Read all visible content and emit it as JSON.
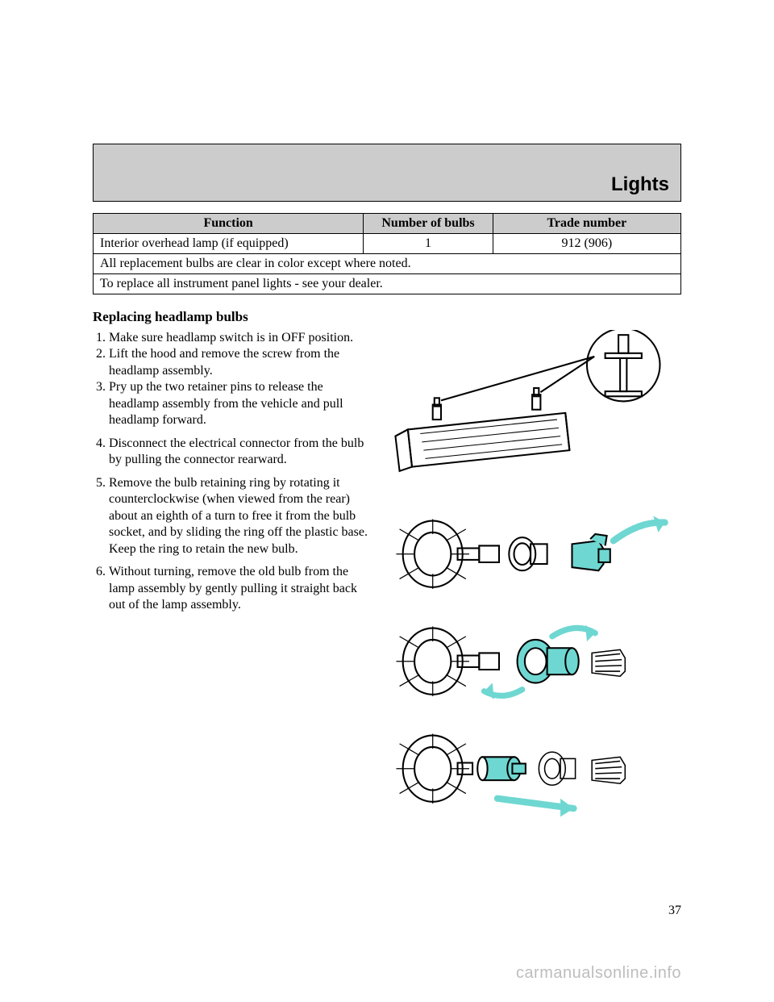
{
  "header": {
    "title": "Lights"
  },
  "table": {
    "columns": [
      "Function",
      "Number of bulbs",
      "Trade number"
    ],
    "col_widths_pct": [
      46,
      22,
      32
    ],
    "header_bg": "#cccccc",
    "border_color": "#000000",
    "rows": [
      {
        "fn": "Interior overhead lamp (if equipped)",
        "n": "1",
        "tn": "912 (906)"
      }
    ],
    "notes": [
      "All replacement bulbs are clear in color except where noted.",
      "To replace all instrument panel lights - see your dealer."
    ]
  },
  "section": {
    "heading": "Replacing headlamp bulbs",
    "steps_block1": [
      "Make sure headlamp switch is in OFF position.",
      "Lift the hood and remove the screw from the headlamp assembly.",
      "Pry up the two retainer pins to release the headlamp assembly from the vehicle and pull headlamp forward."
    ],
    "steps_block2": [
      "Disconnect the electrical connector from the bulb by pulling the connector rearward."
    ],
    "steps_block3": [
      "Remove the bulb retaining ring by rotating it counterclockwise (when viewed from the rear) about an eighth of a turn to free it from the bulb socket, and by sliding the ring off the plastic base. Keep the ring to retain the new bulb."
    ],
    "steps_block4": [
      "Without turning, remove the old bulb from the lamp assembly by gently pulling it straight back out of the lamp assembly."
    ]
  },
  "page_number": "37",
  "watermark": "carmanualsonline.info",
  "colors": {
    "accent": "#6fd7d1",
    "accent_stroke": "#000000",
    "ink": "#000000",
    "bg": "#ffffff",
    "wm": "#bdbdbd"
  }
}
